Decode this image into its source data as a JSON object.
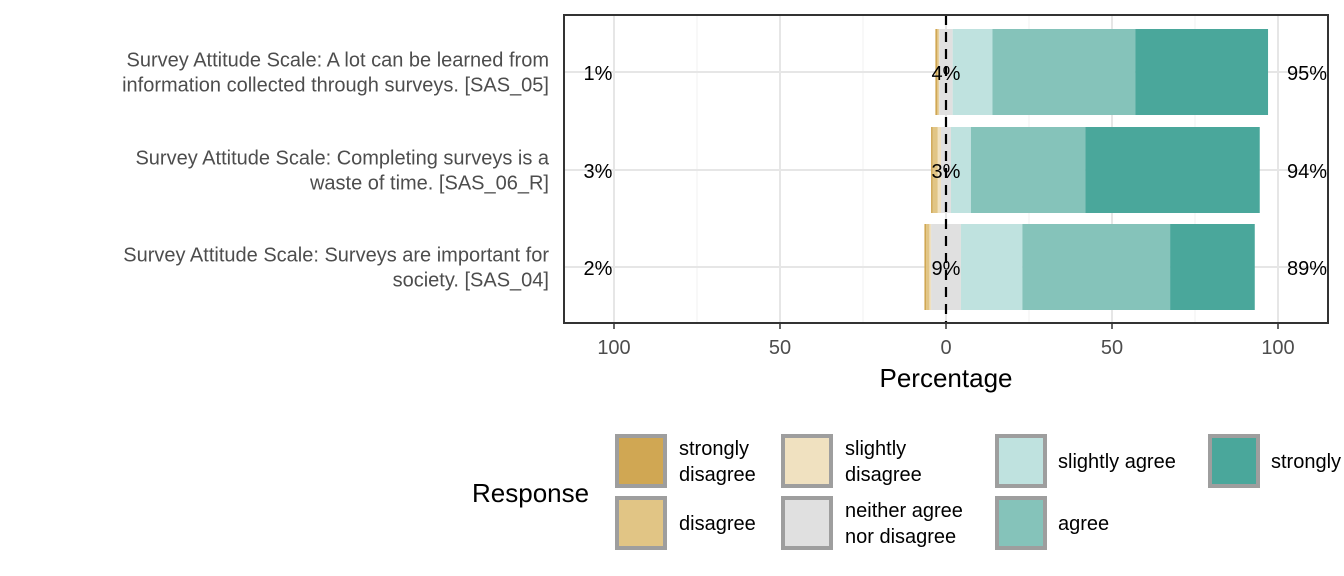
{
  "chart_data": {
    "type": "bar",
    "orientation": "horizontal",
    "stacking": "diverging",
    "xlabel": "Percentage",
    "xlim": [
      -115,
      115
    ],
    "xticks": [
      -100,
      -50,
      0,
      50,
      100
    ],
    "xtick_labels": [
      "100",
      "50",
      "0",
      "50",
      "100"
    ],
    "grid": true,
    "legend": {
      "title": "Response",
      "placement": "bottom",
      "entries": [
        {
          "label_lines": [
            "strongly",
            "disagree"
          ],
          "color": "#D0A753"
        },
        {
          "label_lines": [
            "disagree"
          ],
          "color": "#E1C585"
        },
        {
          "label_lines": [
            "slightly",
            "disagree"
          ],
          "color": "#F0E1C0"
        },
        {
          "label_lines": [
            "neither agree",
            "nor disagree"
          ],
          "color": "#E0E0E0"
        },
        {
          "label_lines": [
            "slightly agree"
          ],
          "color": "#BFE2DF"
        },
        {
          "label_lines": [
            "agree"
          ],
          "color": "#85C3BA"
        },
        {
          "label_lines": [
            "strongly"
          ],
          "color": "#4AA79B"
        }
      ]
    },
    "categories": [
      {
        "label_lines": [
          "Survey Attitude Scale: A lot can be learned from",
          "information collected through surveys. [SAS_05]"
        ],
        "left_pct": "1%",
        "neutral_pct": "4%",
        "right_pct": "95%"
      },
      {
        "label_lines": [
          "Survey Attitude Scale: Completing surveys is a",
          "waste of time. [SAS_06_R]"
        ],
        "left_pct": "3%",
        "neutral_pct": "3%",
        "right_pct": "94%"
      },
      {
        "label_lines": [
          "Survey Attitude Scale: Surveys are important for",
          "society. [SAS_04]"
        ],
        "left_pct": "2%",
        "neutral_pct": "9%",
        "right_pct": "89%"
      }
    ],
    "series": [
      {
        "name": "strongly disagree",
        "color": "#D0A753",
        "values": [
          0.5,
          0.5,
          0.5
        ]
      },
      {
        "name": "disagree",
        "color": "#E1C585",
        "values": [
          0.5,
          1.5,
          1
        ]
      },
      {
        "name": "slightly disagree",
        "color": "#F0E1C0",
        "values": [
          0.2,
          1,
          0.5
        ]
      },
      {
        "name": "neither agree nor disagree",
        "color": "#E0E0E0",
        "values": [
          4,
          3,
          9
        ]
      },
      {
        "name": "slightly agree",
        "color": "#BFE2DF",
        "values": [
          12,
          6,
          18.5
        ]
      },
      {
        "name": "agree",
        "color": "#85C3BA",
        "values": [
          43,
          34.5,
          44.5
        ]
      },
      {
        "name": "strongly agree",
        "color": "#4AA79B",
        "values": [
          40,
          52.5,
          25.5
        ]
      }
    ]
  }
}
